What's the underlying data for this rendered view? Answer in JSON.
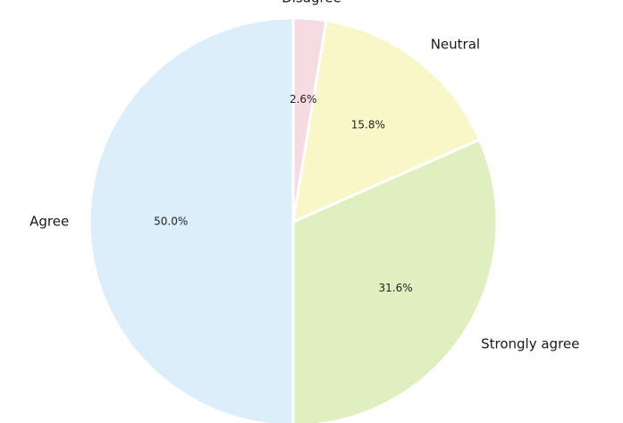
{
  "chart_data": {
    "type": "pie",
    "start_angle_deg": 90,
    "direction": "clockwise",
    "slices": [
      {
        "label": "Disagree",
        "value": 2.6,
        "pct_text": "2.6%",
        "color": "#f6dbe2"
      },
      {
        "label": "Neutral",
        "value": 15.8,
        "pct_text": "15.8%",
        "color": "#f9f6c8"
      },
      {
        "label": "Strongly agree",
        "value": 31.6,
        "pct_text": "31.6%",
        "color": "#e0efbf"
      },
      {
        "label": "Agree",
        "value": 50.0,
        "pct_text": "50.0%",
        "color": "#dbeefa"
      }
    ]
  }
}
